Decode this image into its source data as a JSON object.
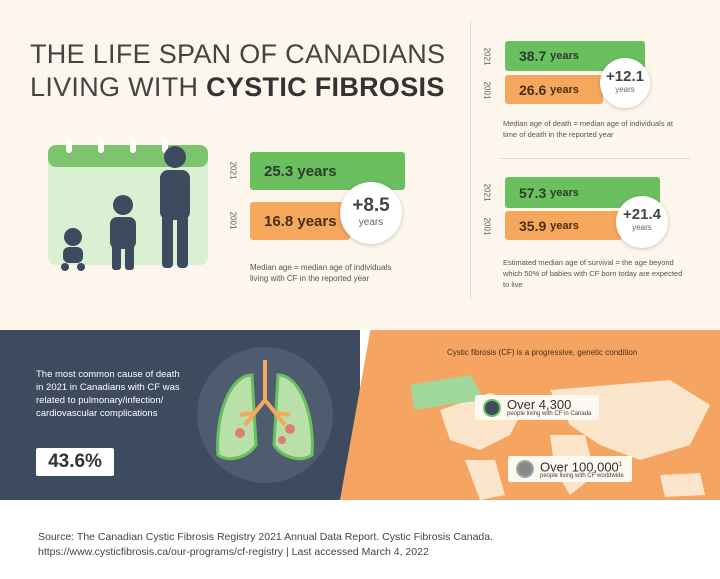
{
  "title": {
    "line1": "THE LIFE SPAN OF CANADIANS",
    "line2_prefix": "LIVING WITH ",
    "line2_bold": "CYSTIC FIBROSIS"
  },
  "median_age": {
    "y2021": "2021",
    "y2001": "2001",
    "v2021": "25.3 years",
    "v2001": "16.8 years",
    "diff": "+8.5",
    "diff_unit": "years",
    "note": "Median age = median age of individuals living with CF in the reported year"
  },
  "median_death": {
    "y2021": "2021",
    "y2001": "2001",
    "v2021_num": "38.7",
    "v2021_unit": "years",
    "v2001_num": "26.6",
    "v2001_unit": "years",
    "diff": "+12.1",
    "diff_unit": "years",
    "note": "Median age of death = median age of individuals at time of death in the reported year"
  },
  "median_survival": {
    "y2021": "2021",
    "y2001": "2001",
    "v2021_num": "57.3",
    "v2021_unit": "years",
    "v2001_num": "35.9",
    "v2001_unit": "years",
    "diff": "+21.4",
    "diff_unit": "years",
    "note": "Estimated median age of survival = the age beyond which 50% of babies with CF born today are expected to live"
  },
  "cause": {
    "text": "The most common cause of death in 2021 in Canadians with CF was related to pulmonary/infection/ cardiovascular complications",
    "percent": "43.6%"
  },
  "map": {
    "caption": "Cystic fibrosis (CF) is a progressive, genetic condition",
    "canada_big": "Over 4,300",
    "canada_small": "people living with CF in Canada",
    "world_big": "Over 100,000",
    "world_sup": "1",
    "world_small": "people living with CF worldwide"
  },
  "footer": {
    "line1": "Source: The Canadian Cystic Fibrosis Registry 2021 Annual Data Report. Cystic Fibrosis Canada.",
    "line2": "https://www.cysticfibrosis.ca/our-programs/cf-registry | Last accessed March 4, 2022"
  },
  "colors": {
    "green": "#6abf5e",
    "orange": "#f6a75e",
    "dark": "#3e4a5e"
  }
}
